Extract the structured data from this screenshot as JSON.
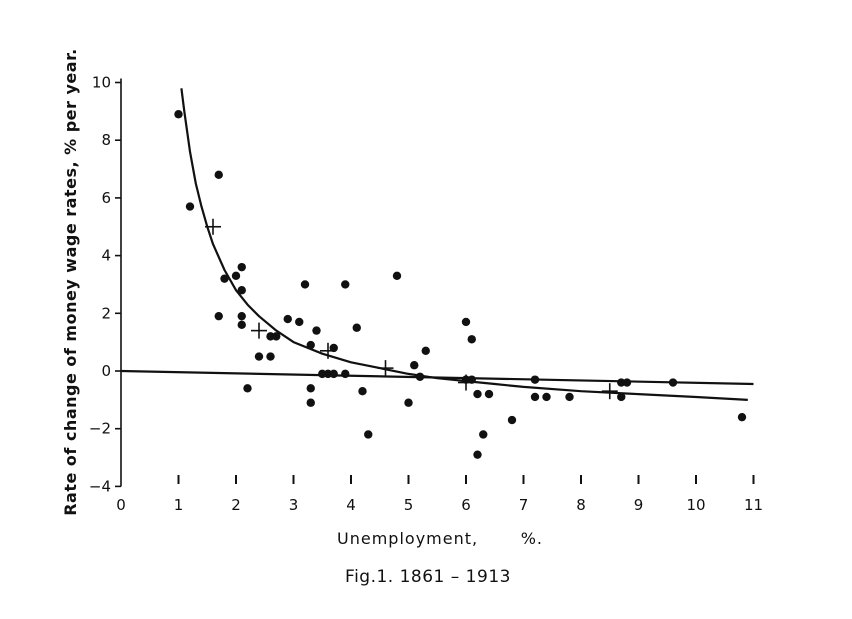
{
  "chart_data": {
    "type": "scatter",
    "title": "",
    "caption": "Fig.1. 1861 – 1913",
    "xlabel": "Unemployment,       %.",
    "ylabel": "Rate of change of money wage rates, % per year.",
    "xlim": [
      0,
      11
    ],
    "ylim": [
      -4,
      10
    ],
    "x_ticks": [
      0,
      1,
      2,
      3,
      4,
      5,
      6,
      7,
      8,
      9,
      10,
      11
    ],
    "y_ticks": [
      -4,
      -2,
      0,
      2,
      4,
      6,
      8,
      10
    ],
    "grid": false,
    "legend": "none",
    "colors": {
      "ink": "#111111",
      "background": "#ffffff"
    },
    "series": [
      {
        "marker": "dot",
        "points": [
          [
            1.0,
            8.9
          ],
          [
            1.2,
            5.7
          ],
          [
            1.7,
            6.8
          ],
          [
            1.7,
            1.9
          ],
          [
            1.8,
            3.2
          ],
          [
            2.0,
            3.3
          ],
          [
            2.1,
            3.6
          ],
          [
            2.1,
            2.8
          ],
          [
            2.1,
            1.9
          ],
          [
            2.1,
            1.6
          ],
          [
            2.2,
            -0.6
          ],
          [
            2.4,
            0.5
          ],
          [
            2.6,
            1.2
          ],
          [
            2.6,
            0.5
          ],
          [
            2.7,
            1.2
          ],
          [
            2.9,
            1.8
          ],
          [
            3.1,
            1.7
          ],
          [
            3.2,
            3.0
          ],
          [
            3.3,
            0.9
          ],
          [
            3.3,
            -0.6
          ],
          [
            3.3,
            -1.1
          ],
          [
            3.4,
            1.4
          ],
          [
            3.5,
            -0.1
          ],
          [
            3.6,
            -0.1
          ],
          [
            3.7,
            0.8
          ],
          [
            3.7,
            -0.1
          ],
          [
            3.9,
            3.0
          ],
          [
            3.9,
            -0.1
          ],
          [
            4.1,
            1.5
          ],
          [
            4.2,
            -0.7
          ],
          [
            4.3,
            -2.2
          ],
          [
            4.8,
            3.3
          ],
          [
            5.0,
            -1.1
          ],
          [
            5.1,
            0.2
          ],
          [
            5.2,
            -0.2
          ],
          [
            5.3,
            0.7
          ],
          [
            6.0,
            1.7
          ],
          [
            6.0,
            -0.3
          ],
          [
            6.1,
            1.1
          ],
          [
            6.1,
            -0.3
          ],
          [
            6.2,
            -0.8
          ],
          [
            6.2,
            -2.9
          ],
          [
            6.3,
            -2.2
          ],
          [
            6.4,
            -0.8
          ],
          [
            6.8,
            -1.7
          ],
          [
            7.2,
            -0.3
          ],
          [
            7.2,
            -0.9
          ],
          [
            7.4,
            -0.9
          ],
          [
            7.8,
            -0.9
          ],
          [
            8.7,
            -0.4
          ],
          [
            8.7,
            -0.9
          ],
          [
            8.8,
            -0.4
          ],
          [
            9.6,
            -0.4
          ],
          [
            10.8,
            -1.6
          ]
        ]
      },
      {
        "marker": "cross",
        "points": [
          [
            1.6,
            5.0
          ],
          [
            2.4,
            1.4
          ],
          [
            3.6,
            0.7
          ],
          [
            4.6,
            0.1
          ],
          [
            6.0,
            -0.4
          ],
          [
            8.5,
            -0.7
          ]
        ]
      },
      {
        "marker": "line",
        "points": [
          [
            1.05,
            9.8
          ],
          [
            1.1,
            9.0
          ],
          [
            1.2,
            7.6
          ],
          [
            1.3,
            6.5
          ],
          [
            1.4,
            5.7
          ],
          [
            1.5,
            5.0
          ],
          [
            1.6,
            4.4
          ],
          [
            1.8,
            3.5
          ],
          [
            2.0,
            2.8
          ],
          [
            2.2,
            2.3
          ],
          [
            2.4,
            1.9
          ],
          [
            2.7,
            1.4
          ],
          [
            3.0,
            1.0
          ],
          [
            3.5,
            0.6
          ],
          [
            4.0,
            0.3
          ],
          [
            4.5,
            0.1
          ],
          [
            5.0,
            -0.1
          ],
          [
            5.5,
            -0.25
          ],
          [
            6.0,
            -0.35
          ],
          [
            6.5,
            -0.45
          ],
          [
            7.0,
            -0.55
          ],
          [
            8.0,
            -0.7
          ],
          [
            9.0,
            -0.8
          ],
          [
            10.0,
            -0.9
          ],
          [
            10.9,
            -1.0
          ]
        ]
      },
      {
        "marker": "line",
        "points": [
          [
            0,
            0.0
          ],
          [
            11,
            -0.45
          ]
        ]
      }
    ]
  }
}
